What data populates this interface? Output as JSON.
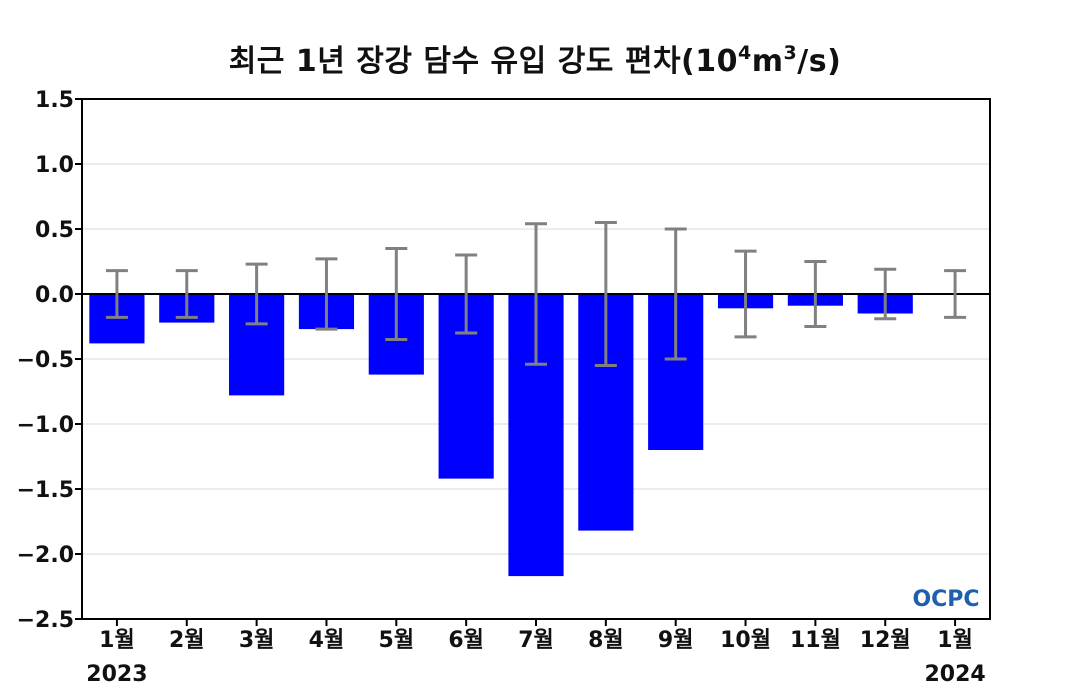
{
  "chart_data": {
    "type": "bar",
    "title_main": "최근 1년 장강 담수 유입 강도 편차(10",
    "title_sup1": "4",
    "title_mid": "m",
    "title_sup2": "3",
    "title_end": "/s)",
    "categories": [
      "1월",
      "2월",
      "3월",
      "4월",
      "5월",
      "6월",
      "7월",
      "8월",
      "9월",
      "10월",
      "11월",
      "12월",
      "1월"
    ],
    "year_labels": [
      {
        "index": 0,
        "text": "2023"
      },
      {
        "index": 12,
        "text": "2024"
      }
    ],
    "values": [
      -0.38,
      -0.22,
      -0.78,
      -0.27,
      -0.62,
      -1.42,
      -2.17,
      -1.82,
      -1.2,
      -0.11,
      -0.09,
      -0.15,
      0.0
    ],
    "error": [
      0.18,
      0.18,
      0.23,
      0.27,
      0.35,
      0.3,
      0.54,
      0.55,
      0.5,
      0.33,
      0.25,
      0.19,
      0.18
    ],
    "ylim": [
      -2.5,
      1.5
    ],
    "yticks": [
      "1.5",
      "1.0",
      "0.5",
      "0.0",
      "−0.5",
      "−1.0",
      "−1.5",
      "−2.0",
      "−2.5"
    ],
    "ytick_values": [
      1.5,
      1.0,
      0.5,
      0.0,
      -0.5,
      -1.0,
      -1.5,
      -2.0,
      -2.5
    ],
    "grid": true,
    "colors": {
      "bar": "#0000ff",
      "error": "#808080",
      "grid": "#d9d9d9",
      "zero_line": "#000000"
    }
  },
  "logo": {
    "text": "OCPC",
    "color": "#1f5fb0"
  }
}
